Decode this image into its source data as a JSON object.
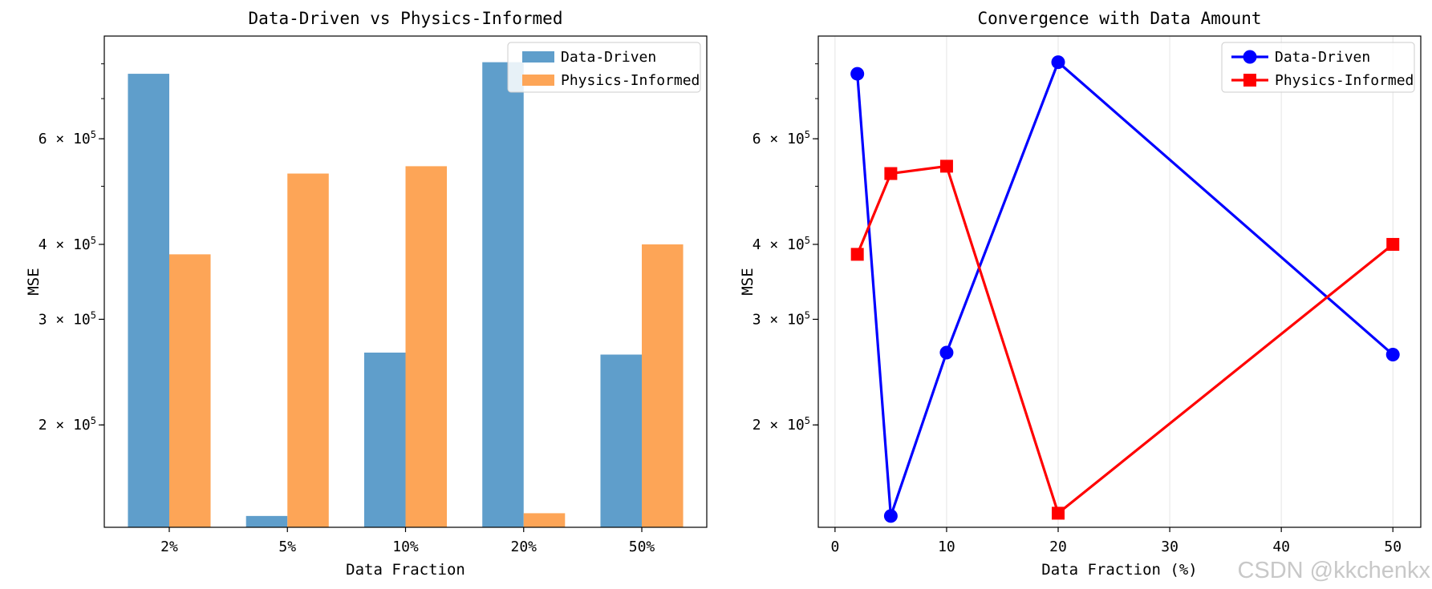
{
  "watermark": "CSDN @kkchenkx",
  "colors": {
    "bar_data_driven": "#5f9ecb",
    "bar_physics_informed": "#fda557",
    "line_data_driven": "#0000ff",
    "line_physics_informed": "#ff0000",
    "grid": "#e4e4e4"
  },
  "chart_data": [
    {
      "type": "bar",
      "title": "Data-Driven vs Physics-Informed",
      "xlabel": "Data Fraction",
      "ylabel": "MSE",
      "yscale": "log",
      "ylim": [
        135000,
        890000
      ],
      "yticks": [
        {
          "value": 200000,
          "label": "2 × 10^5"
        },
        {
          "value": 300000,
          "label": "3 × 10^5"
        },
        {
          "value": 400000,
          "label": "4 × 10^5"
        },
        {
          "value": 600000,
          "label": "6 × 10^5"
        }
      ],
      "categories": [
        "2%",
        "5%",
        "10%",
        "20%",
        "50%"
      ],
      "series": [
        {
          "name": "Data-Driven",
          "values": [
            770000,
            141000,
            264000,
            805000,
            262000
          ]
        },
        {
          "name": "Physics-Informed",
          "values": [
            385000,
            525000,
            540000,
            142500,
            400000
          ]
        }
      ],
      "legend": "upper right",
      "grid": false
    },
    {
      "type": "line",
      "title": "Convergence with Data Amount",
      "xlabel": "Data Fraction (%)",
      "ylabel": "MSE",
      "yscale": "log",
      "xlim": [
        -1.5,
        52.5
      ],
      "ylim": [
        135000,
        890000
      ],
      "xticks": [
        0,
        10,
        20,
        30,
        40,
        50
      ],
      "yticks": [
        {
          "value": 200000,
          "label": "2 × 10^5"
        },
        {
          "value": 300000,
          "label": "3 × 10^5"
        },
        {
          "value": 400000,
          "label": "4 × 10^5"
        },
        {
          "value": 600000,
          "label": "6 × 10^5"
        }
      ],
      "x": [
        2,
        5,
        10,
        20,
        50
      ],
      "series": [
        {
          "name": "Data-Driven",
          "marker": "circle",
          "values": [
            770000,
            141000,
            264000,
            805000,
            262000
          ]
        },
        {
          "name": "Physics-Informed",
          "marker": "square",
          "values": [
            385000,
            525000,
            540000,
            142500,
            400000
          ]
        }
      ],
      "legend": "upper right",
      "grid": true
    }
  ]
}
